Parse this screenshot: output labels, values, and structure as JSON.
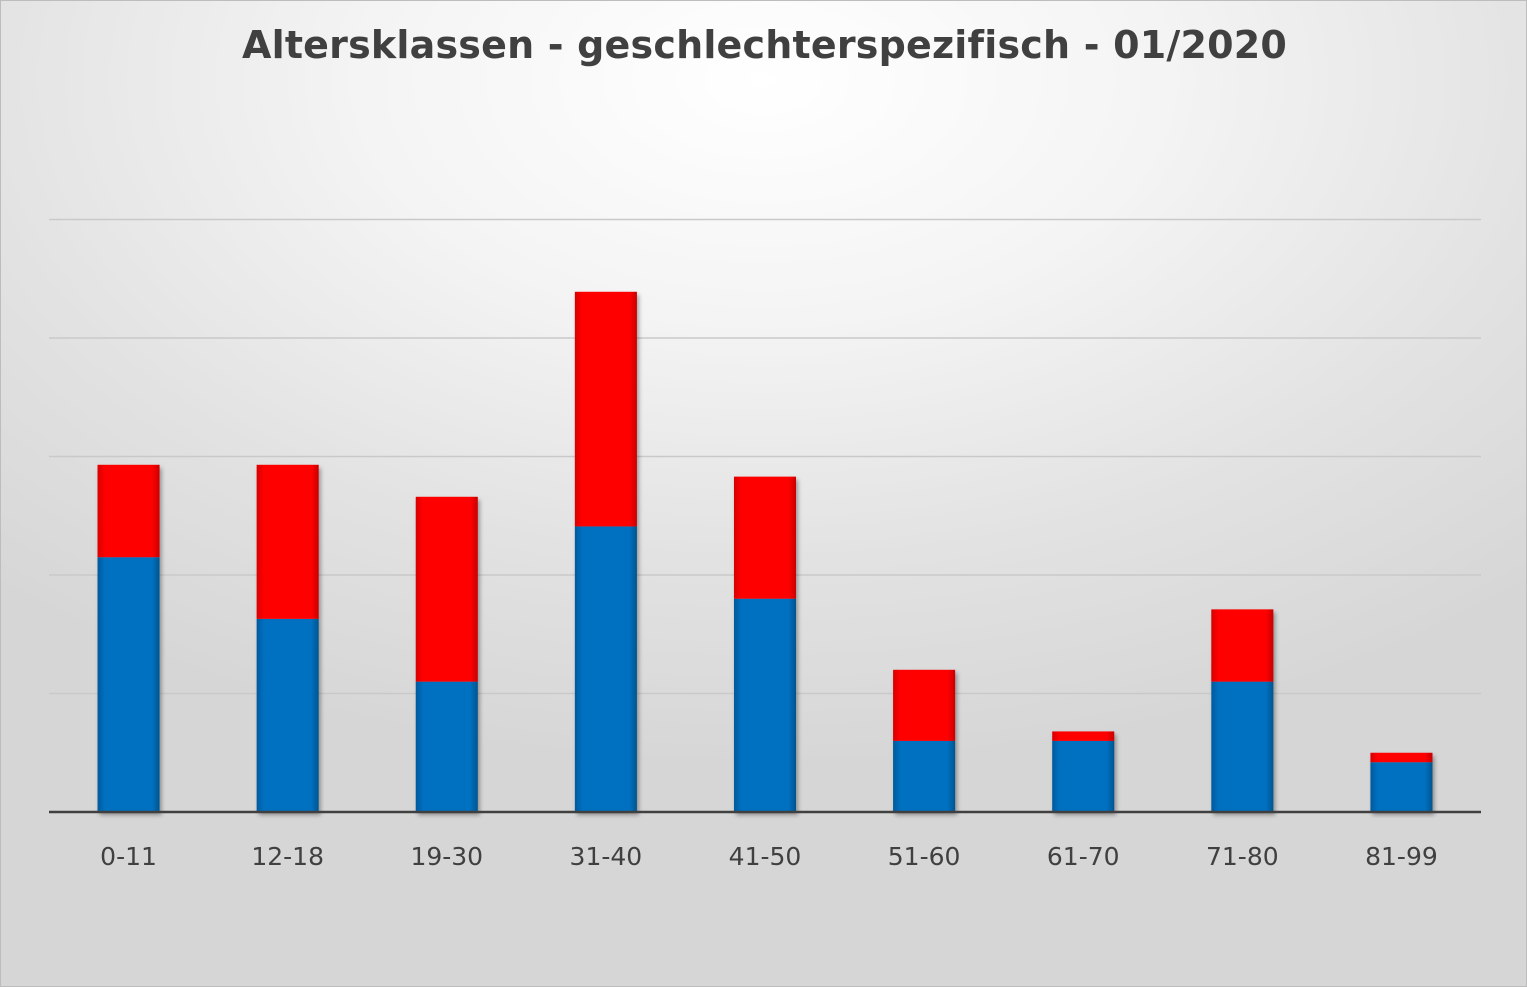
{
  "chart_data": {
    "type": "bar",
    "stacked": true,
    "title": "Altersklassen - geschlechterspezifisch - 01/2020",
    "xlabel": "",
    "ylabel": "",
    "categories": [
      "0-11",
      "12-18",
      "19-30",
      "31-40",
      "41-50",
      "51-60",
      "61-70",
      "71-80",
      "81-99"
    ],
    "series": [
      {
        "color": "#0070C0",
        "values": [
          21.5,
          16.3,
          11,
          24.1,
          18,
          6,
          6,
          11,
          4.2
        ]
      },
      {
        "color": "#FF0000",
        "values": [
          7.8,
          13,
          15.6,
          19.8,
          10.3,
          6,
          0.8,
          6.1,
          0.8
        ]
      }
    ],
    "ylim": [
      0,
      50
    ],
    "gridline_step": 10,
    "y_tick_labels_shown": false,
    "legend": "none",
    "grid": true
  }
}
